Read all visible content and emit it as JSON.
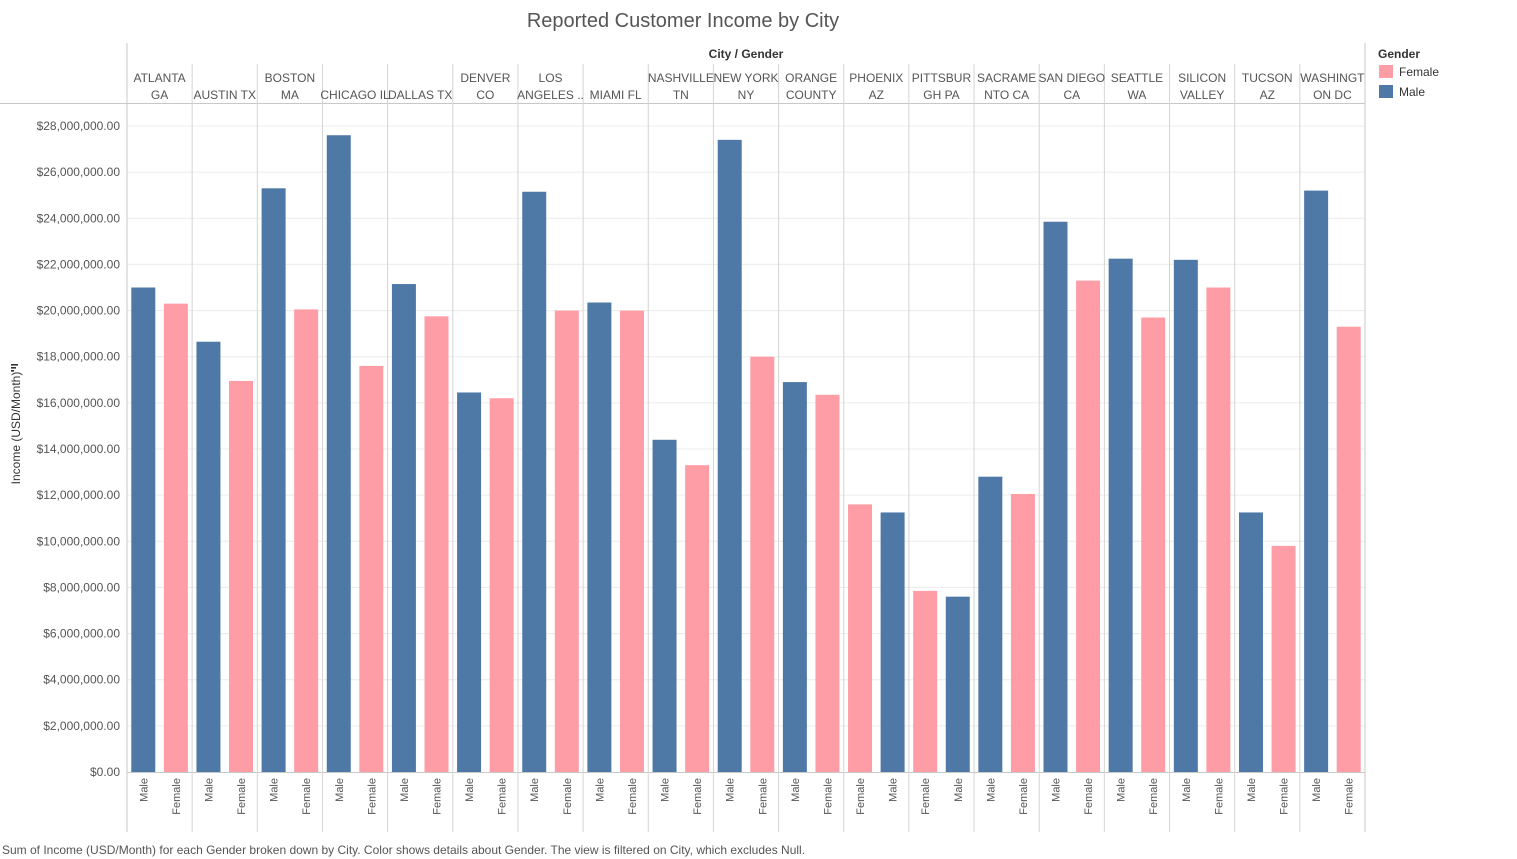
{
  "chart_data": {
    "type": "bar",
    "title": "Reported Customer Income by City",
    "column_header": "City / Gender",
    "ylabel": "Income (USD/Month)",
    "ylim": [
      0,
      28500000
    ],
    "yticks": [
      0,
      2000000,
      4000000,
      6000000,
      8000000,
      10000000,
      12000000,
      14000000,
      16000000,
      18000000,
      20000000,
      22000000,
      24000000,
      26000000,
      28000000
    ],
    "ytick_labels": [
      "$0.00",
      "$2,000,000.00",
      "$4,000,000.00",
      "$6,000,000.00",
      "$8,000,000.00",
      "$10,000,000.00",
      "$12,000,000.00",
      "$14,000,000.00",
      "$16,000,000.00",
      "$18,000,000.00",
      "$20,000,000.00",
      "$22,000,000.00",
      "$24,000,000.00",
      "$26,000,000.00",
      "$28,000,000.00"
    ],
    "grid": true,
    "legend": {
      "title": "Gender",
      "placement": "top-right",
      "entries": [
        {
          "label": "Female",
          "color": "#ff9da7"
        },
        {
          "label": "Male",
          "color": "#4e79a7"
        }
      ]
    },
    "colors": {
      "Male": "#4e79a7",
      "Female": "#ff9da7"
    },
    "cities": [
      {
        "name": [
          "ATLANTA",
          "GA"
        ],
        "bars": [
          {
            "gender": "Male",
            "value": 21000000
          },
          {
            "gender": "Female",
            "value": 20300000
          }
        ]
      },
      {
        "name": [
          "AUSTIN TX"
        ],
        "bars": [
          {
            "gender": "Male",
            "value": 18650000
          },
          {
            "gender": "Female",
            "value": 16950000
          }
        ]
      },
      {
        "name": [
          "BOSTON",
          "MA"
        ],
        "bars": [
          {
            "gender": "Male",
            "value": 25300000
          },
          {
            "gender": "Female",
            "value": 20050000
          }
        ]
      },
      {
        "name": [
          "CHICAGO IL"
        ],
        "bars": [
          {
            "gender": "Male",
            "value": 27600000
          },
          {
            "gender": "Female",
            "value": 17600000
          }
        ]
      },
      {
        "name": [
          "DALLAS TX"
        ],
        "bars": [
          {
            "gender": "Male",
            "value": 21150000
          },
          {
            "gender": "Female",
            "value": 19750000
          }
        ]
      },
      {
        "name": [
          "DENVER",
          "CO"
        ],
        "bars": [
          {
            "gender": "Male",
            "value": 16450000
          },
          {
            "gender": "Female",
            "value": 16200000
          }
        ]
      },
      {
        "name": [
          "LOS",
          "ANGELES .."
        ],
        "bars": [
          {
            "gender": "Male",
            "value": 25150000
          },
          {
            "gender": "Female",
            "value": 20000000
          }
        ]
      },
      {
        "name": [
          "MIAMI FL"
        ],
        "bars": [
          {
            "gender": "Male",
            "value": 20350000
          },
          {
            "gender": "Female",
            "value": 20000000
          }
        ]
      },
      {
        "name": [
          "NASHVILLE",
          "TN"
        ],
        "bars": [
          {
            "gender": "Male",
            "value": 14400000
          },
          {
            "gender": "Female",
            "value": 13300000
          }
        ]
      },
      {
        "name": [
          "NEW YORK",
          "NY"
        ],
        "bars": [
          {
            "gender": "Male",
            "value": 27400000
          },
          {
            "gender": "Female",
            "value": 18000000
          }
        ]
      },
      {
        "name": [
          "ORANGE",
          "COUNTY"
        ],
        "bars": [
          {
            "gender": "Male",
            "value": 16900000
          },
          {
            "gender": "Female",
            "value": 16350000
          }
        ]
      },
      {
        "name": [
          "PHOENIX",
          "AZ"
        ],
        "bars": [
          {
            "gender": "Female",
            "value": 11600000
          },
          {
            "gender": "Male",
            "value": 11250000
          }
        ]
      },
      {
        "name": [
          "PITTSBUR",
          "GH PA"
        ],
        "bars": [
          {
            "gender": "Female",
            "value": 7850000
          },
          {
            "gender": "Male",
            "value": 7600000
          }
        ]
      },
      {
        "name": [
          "SACRAME",
          "NTO CA"
        ],
        "bars": [
          {
            "gender": "Male",
            "value": 12800000
          },
          {
            "gender": "Female",
            "value": 12050000
          }
        ]
      },
      {
        "name": [
          "SAN DIEGO",
          "CA"
        ],
        "bars": [
          {
            "gender": "Male",
            "value": 23850000
          },
          {
            "gender": "Female",
            "value": 21300000
          }
        ]
      },
      {
        "name": [
          "SEATTLE",
          "WA"
        ],
        "bars": [
          {
            "gender": "Male",
            "value": 22250000
          },
          {
            "gender": "Female",
            "value": 19700000
          }
        ]
      },
      {
        "name": [
          "SILICON",
          "VALLEY"
        ],
        "bars": [
          {
            "gender": "Male",
            "value": 22200000
          },
          {
            "gender": "Female",
            "value": 21000000
          }
        ]
      },
      {
        "name": [
          "TUCSON",
          "AZ"
        ],
        "bars": [
          {
            "gender": "Male",
            "value": 11250000
          },
          {
            "gender": "Female",
            "value": 9800000
          }
        ]
      },
      {
        "name": [
          "WASHINGT",
          "ON DC"
        ],
        "bars": [
          {
            "gender": "Male",
            "value": 25200000
          },
          {
            "gender": "Female",
            "value": 19300000
          }
        ]
      }
    ],
    "caption": "Sum of Income (USD/Month) for each Gender broken down by City.  Color shows details about Gender. The view is filtered on City, which excludes Null."
  }
}
